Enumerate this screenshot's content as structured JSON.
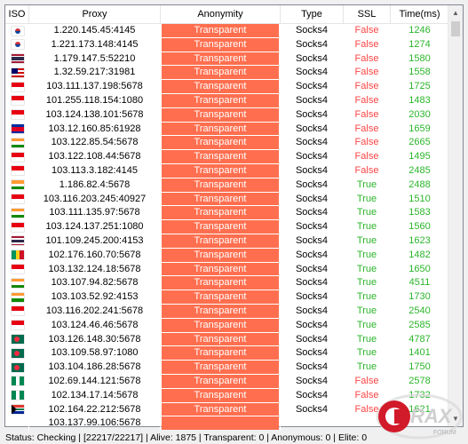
{
  "columns": {
    "iso": "ISO",
    "proxy": "Proxy",
    "anonymity": "Anonymity",
    "type": "Type",
    "ssl": "SSL",
    "time": "Time(ms)"
  },
  "rows": [
    {
      "flag": [
        "#ffffff",
        "#cd2e3a",
        "#0047a0"
      ],
      "flag_style": "kr",
      "proxy": "1.220.145.45:4145",
      "anonymity": "Transparent",
      "type": "Socks4",
      "ssl": "False",
      "time": "1246"
    },
    {
      "flag": [
        "#ffffff",
        "#cd2e3a",
        "#0047a0"
      ],
      "flag_style": "kr",
      "proxy": "1.221.173.148:4145",
      "anonymity": "Transparent",
      "type": "Socks4",
      "ssl": "False",
      "time": "1274"
    },
    {
      "flag": [
        "#a51931",
        "#ffffff",
        "#2d2a4a",
        "#ffffff",
        "#a51931"
      ],
      "flag_style": "th",
      "proxy": "1.179.147.5:52210",
      "anonymity": "Transparent",
      "type": "Socks4",
      "ssl": "False",
      "time": "1580"
    },
    {
      "flag": [
        "#cc0001",
        "#ffffff",
        "#cc0001",
        "#ffffff",
        "#cc0001"
      ],
      "flag_style": "my",
      "proxy": "1.32.59.217:31981",
      "anonymity": "Transparent",
      "type": "Socks4",
      "ssl": "False",
      "time": "1558"
    },
    {
      "flag": [
        "#e70011",
        "#ffffff"
      ],
      "flag_style": "h",
      "proxy": "103.111.137.198:5678",
      "anonymity": "Transparent",
      "type": "Socks4",
      "ssl": "False",
      "time": "1725"
    },
    {
      "flag": [
        "#e70011",
        "#ffffff"
      ],
      "flag_style": "h",
      "proxy": "101.255.118.154:1080",
      "anonymity": "Transparent",
      "type": "Socks4",
      "ssl": "False",
      "time": "1483"
    },
    {
      "flag": [
        "#e70011",
        "#ffffff"
      ],
      "flag_style": "h",
      "proxy": "103.124.138.101:5678",
      "anonymity": "Transparent",
      "type": "Socks4",
      "ssl": "False",
      "time": "2030"
    },
    {
      "flag": [
        "#032ea1",
        "#e00025",
        "#032ea1"
      ],
      "flag_style": "kh",
      "proxy": "103.12.160.85:61928",
      "anonymity": "Transparent",
      "type": "Socks4",
      "ssl": "False",
      "time": "1659"
    },
    {
      "flag": [
        "#ff9933",
        "#ffffff",
        "#138808"
      ],
      "flag_style": "h",
      "proxy": "103.122.85.54:5678",
      "anonymity": "Transparent",
      "type": "Socks4",
      "ssl": "False",
      "time": "2665"
    },
    {
      "flag": [
        "#e70011",
        "#ffffff"
      ],
      "flag_style": "h",
      "proxy": "103.122.108.44:5678",
      "anonymity": "Transparent",
      "type": "Socks4",
      "ssl": "False",
      "time": "1495"
    },
    {
      "flag": [
        "#e70011",
        "#ffffff"
      ],
      "flag_style": "h",
      "proxy": "103.113.3.182:4145",
      "anonymity": "Transparent",
      "type": "Socks4",
      "ssl": "False",
      "time": "2485"
    },
    {
      "flag": [
        "#ff9933",
        "#ffffff",
        "#138808"
      ],
      "flag_style": "h",
      "proxy": "1.186.82.4:5678",
      "anonymity": "Transparent",
      "type": "Socks4",
      "ssl": "True",
      "time": "2488"
    },
    {
      "flag": [
        "#e70011",
        "#ffffff"
      ],
      "flag_style": "h",
      "proxy": "103.116.203.245:40927",
      "anonymity": "Transparent",
      "type": "Socks4",
      "ssl": "True",
      "time": "1510"
    },
    {
      "flag": [
        "#ff9933",
        "#ffffff",
        "#138808"
      ],
      "flag_style": "h",
      "proxy": "103.111.135.97:5678",
      "anonymity": "Transparent",
      "type": "Socks4",
      "ssl": "True",
      "time": "1583"
    },
    {
      "flag": [
        "#e70011",
        "#ffffff"
      ],
      "flag_style": "h",
      "proxy": "103.124.137.251:1080",
      "anonymity": "Transparent",
      "type": "Socks4",
      "ssl": "True",
      "time": "1560"
    },
    {
      "flag": [
        "#a51931",
        "#ffffff",
        "#2d2a4a",
        "#ffffff",
        "#a51931"
      ],
      "flag_style": "th",
      "proxy": "101.109.245.200:4153",
      "anonymity": "Transparent",
      "type": "Socks4",
      "ssl": "True",
      "time": "1623"
    },
    {
      "flag": [
        "#009460",
        "#fcd116",
        "#ce1126"
      ],
      "flag_style": "v",
      "proxy": "102.176.160.70:5678",
      "anonymity": "Transparent",
      "type": "Socks4",
      "ssl": "True",
      "time": "1482"
    },
    {
      "flag": [
        "#e70011",
        "#ffffff"
      ],
      "flag_style": "h",
      "proxy": "103.132.124.18:5678",
      "anonymity": "Transparent",
      "type": "Socks4",
      "ssl": "True",
      "time": "1650"
    },
    {
      "flag": [
        "#ff9933",
        "#ffffff",
        "#138808"
      ],
      "flag_style": "h",
      "proxy": "103.107.94.82:5678",
      "anonymity": "Transparent",
      "type": "Socks4",
      "ssl": "True",
      "time": "4511"
    },
    {
      "flag": [
        "#ff9933",
        "#ffffff",
        "#138808"
      ],
      "flag_style": "h",
      "proxy": "103.103.52.92:4153",
      "anonymity": "Transparent",
      "type": "Socks4",
      "ssl": "True",
      "time": "1730"
    },
    {
      "flag": [
        "#e70011",
        "#ffffff"
      ],
      "flag_style": "h",
      "proxy": "103.116.202.241:5678",
      "anonymity": "Transparent",
      "type": "Socks4",
      "ssl": "True",
      "time": "2540"
    },
    {
      "flag": [
        "#e70011",
        "#ffffff"
      ],
      "flag_style": "h",
      "proxy": "103.124.46.46:5678",
      "anonymity": "Transparent",
      "type": "Socks4",
      "ssl": "True",
      "time": "2585"
    },
    {
      "flag": [
        "#006a4e",
        "#f42a41",
        "#006a4e"
      ],
      "flag_style": "bd",
      "proxy": "103.126.148.30:5678",
      "anonymity": "Transparent",
      "type": "Socks4",
      "ssl": "True",
      "time": "4787"
    },
    {
      "flag": [
        "#006a4e",
        "#f42a41",
        "#006a4e"
      ],
      "flag_style": "bd",
      "proxy": "103.109.58.97:1080",
      "anonymity": "Transparent",
      "type": "Socks4",
      "ssl": "True",
      "time": "1401"
    },
    {
      "flag": [
        "#006a4e",
        "#f42a41",
        "#006a4e"
      ],
      "flag_style": "bd",
      "proxy": "103.104.186.28:5678",
      "anonymity": "Transparent",
      "type": "Socks4",
      "ssl": "True",
      "time": "1750"
    },
    {
      "flag": [
        "#008751",
        "#ffffff",
        "#008751"
      ],
      "flag_style": "v",
      "proxy": "102.69.144.121:5678",
      "anonymity": "Transparent",
      "type": "Socks4",
      "ssl": "False",
      "time": "2578"
    },
    {
      "flag": [
        "#008751",
        "#ffffff",
        "#008751"
      ],
      "flag_style": "v",
      "proxy": "102.134.17.14:5678",
      "anonymity": "Transparent",
      "type": "Socks4",
      "ssl": "False",
      "time": "1732"
    },
    {
      "flag": [
        "#de3831",
        "#ffffff",
        "#007a4d",
        "#ffffff",
        "#002395"
      ],
      "flag_style": "za",
      "proxy": "102.164.22.212:5678",
      "anonymity": "Transparent",
      "type": "Socks4",
      "ssl": "False",
      "time": "1621"
    }
  ],
  "partial_row": {
    "proxy": "103.137.99.106:5678"
  },
  "status": "Status: Checking | [22217/22217] | Alive: 1875 | Transparent: 0 | Anonymous: 0 | Elite: 0",
  "watermark": {
    "word": "RAX",
    "sub": "FORUM"
  },
  "icons": {
    "scroll_up": "chevron-up-icon",
    "scroll_down": "chevron-down-icon"
  },
  "colors": {
    "transparent_bg": "#ff6f4f",
    "ssl_false": "#ff4444",
    "ssl_true": "#2bb52b",
    "time": "#2bb52b"
  }
}
